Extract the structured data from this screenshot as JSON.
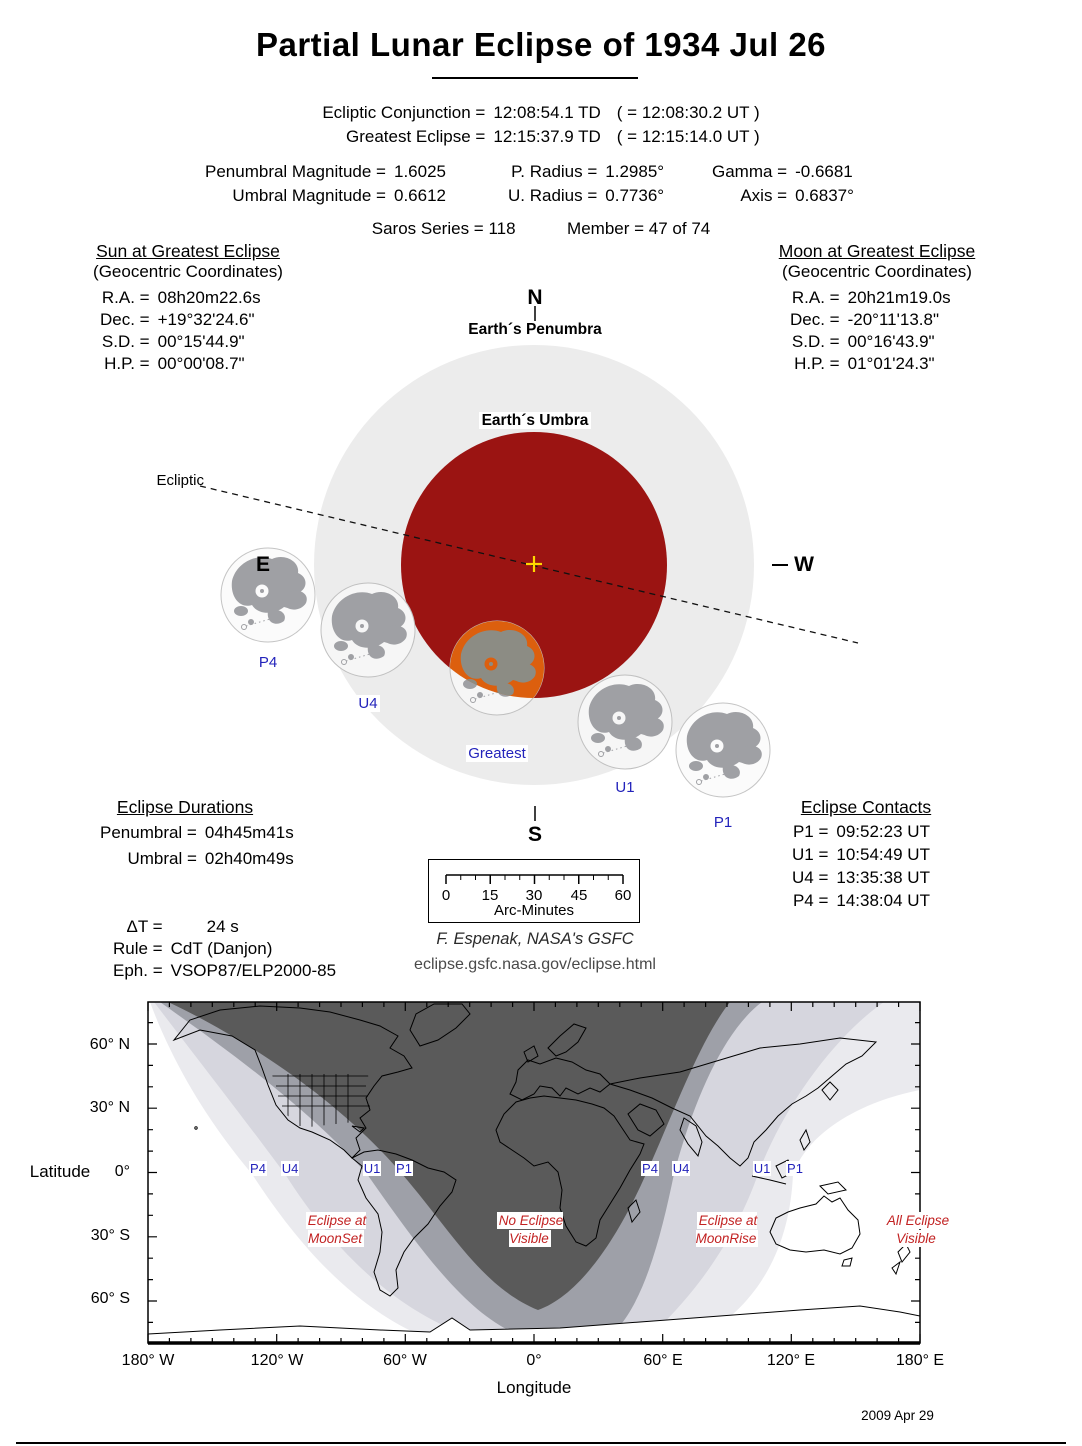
{
  "title": "Partial Lunar Eclipse of  1934 Jul 26",
  "conjunction": {
    "rows": [
      {
        "label": "Ecliptic Conjunction =",
        "td": "12:08:54.1 TD",
        "ut": "( = 12:08:30.2 UT )"
      },
      {
        "label": "Greatest Eclipse =",
        "td": "12:15:37.9 TD",
        "ut": "( = 12:15:14.0 UT )"
      }
    ]
  },
  "magnitudes": {
    "col1": [
      {
        "label": "Penumbral Magnitude =",
        "value": "1.6025"
      },
      {
        "label": "Umbral Magnitude =",
        "value": "0.6612"
      }
    ],
    "col2": [
      {
        "label": "P. Radius =",
        "value": "1.2985°"
      },
      {
        "label": "U. Radius =",
        "value": "0.7736°"
      }
    ],
    "col3": [
      {
        "label": "Gamma =",
        "value": "-0.6681"
      },
      {
        "label": "Axis =",
        "value": "0.6837°"
      }
    ]
  },
  "saros": {
    "series_label": "Saros Series =",
    "series_value": "118",
    "member_label": "Member =",
    "member_value": "47 of 74"
  },
  "sun": {
    "title": "Sun at Greatest Eclipse",
    "subtitle": "(Geocentric Coordinates)",
    "rows": [
      {
        "label": "R.A. =",
        "value": "08h20m22.6s"
      },
      {
        "label": "Dec. =",
        "value": "+19°32'24.6\""
      },
      {
        "label": "S.D. =",
        "value": "00°15'44.9\""
      },
      {
        "label": "H.P. =",
        "value": "00°00'08.7\""
      }
    ]
  },
  "moon": {
    "title": "Moon at Greatest Eclipse",
    "subtitle": "(Geocentric Coordinates)",
    "rows": [
      {
        "label": "R.A. =",
        "value": "20h21m19.0s"
      },
      {
        "label": "Dec. =",
        "value": "-20°11'13.8\""
      },
      {
        "label": "S.D. =",
        "value": "00°16'43.9\""
      },
      {
        "label": "H.P. =",
        "value": "01°01'24.3\""
      }
    ]
  },
  "diagram": {
    "north": "N",
    "south": "S",
    "east": "E",
    "west": "W",
    "penumbra_label": "Earth´s Penumbra",
    "umbra_label": "Earth´s Umbra",
    "ecliptic_label": "Ecliptic",
    "positions": [
      "P4",
      "U4",
      "Greatest",
      "U1",
      "P1"
    ]
  },
  "durations": {
    "title": "Eclipse Durations",
    "rows": [
      {
        "label": "Penumbral =",
        "value": "04h45m41s"
      },
      {
        "label": "Umbral =",
        "value": "02h40m49s"
      }
    ]
  },
  "contacts": {
    "title": "Eclipse Contacts",
    "rows": [
      {
        "label": "P1 =",
        "value": "09:52:23 UT"
      },
      {
        "label": "U1 =",
        "value": "10:54:49 UT"
      },
      {
        "label": "U4 =",
        "value": "13:35:38 UT"
      },
      {
        "label": "P4 =",
        "value": "14:38:04 UT"
      }
    ]
  },
  "scale": {
    "ticks": [
      "0",
      "15",
      "30",
      "45",
      "60"
    ],
    "label": "Arc-Minutes"
  },
  "params": {
    "rows": [
      {
        "label": "ΔT =",
        "value": "24 s"
      },
      {
        "label": "Rule =",
        "value": "CdT (Danjon)"
      },
      {
        "label": "Eph. =",
        "value": "VSOP87/ELP2000-85"
      }
    ]
  },
  "credit": {
    "author": "F. Espenak, NASA's GSFC",
    "url": "eclipse.gsfc.nasa.gov/eclipse.html"
  },
  "map": {
    "ylabel": "Latitude",
    "xlabel": "Longitude",
    "lat_ticks": [
      "60° N",
      "30° N",
      "0°",
      "30° S",
      "60° S"
    ],
    "lon_ticks": [
      "180° W",
      "120° W",
      "60° W",
      "0°",
      "60° E",
      "120° E",
      "180° E"
    ],
    "zones_left": [
      "P4",
      "U4",
      "U1",
      "P1"
    ],
    "zones_right": [
      "P4",
      "U4",
      "U1",
      "P1"
    ],
    "regions": [
      {
        "line1": "Eclipse at",
        "line2": "MoonSet"
      },
      {
        "line1": "No Eclipse",
        "line2": "Visible"
      },
      {
        "line1": "Eclipse at",
        "line2": "MoonRise"
      },
      {
        "line1": "All Eclipse",
        "line2": "Visible"
      }
    ]
  },
  "date_stamp": "2009 Apr 29",
  "colors": {
    "umbra": "#9B1412",
    "penumbra": "#ECECEC",
    "moon_in_umbra": "#DC5F0E",
    "moon_maria": "#9FA0A4",
    "contact_label_blue": "#2323BB",
    "region_label_red": "#C22222",
    "cross_yellow": "#FFD800",
    "map_dark": "#5A5A5A",
    "map_medium": "#9EA0A8",
    "map_light": "#D6D6DE",
    "map_lightest": "#EAEAEE"
  }
}
